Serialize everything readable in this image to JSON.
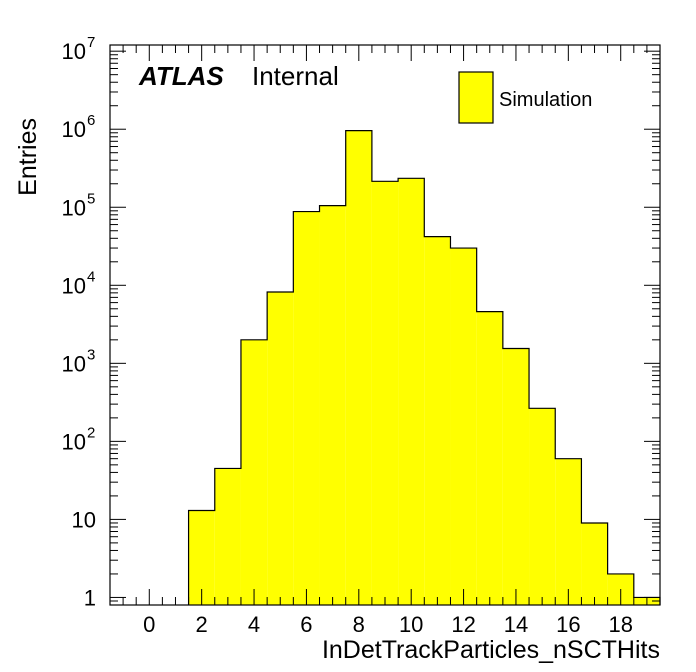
{
  "chart_data": {
    "type": "bar",
    "subtype": "histogram",
    "xlabel": "InDetTrackParticles_nSCTHits",
    "ylabel": "Entries",
    "xlim": [
      -1.5,
      19.5
    ],
    "ylim": [
      0.8,
      12000000
    ],
    "yscale": "log",
    "x_ticks": [
      0,
      2,
      4,
      6,
      8,
      10,
      12,
      14,
      16,
      18
    ],
    "y_ticks": [
      {
        "value": 1,
        "base": "1",
        "exp": ""
      },
      {
        "value": 10,
        "base": "10",
        "exp": ""
      },
      {
        "value": 100,
        "base": "10",
        "exp": "2"
      },
      {
        "value": 1000,
        "base": "10",
        "exp": "3"
      },
      {
        "value": 10000,
        "base": "10",
        "exp": "4"
      },
      {
        "value": 100000,
        "base": "10",
        "exp": "5"
      },
      {
        "value": 1000000,
        "base": "10",
        "exp": "6"
      },
      {
        "value": 10000000,
        "base": "10",
        "exp": "7"
      }
    ],
    "bin_edges": [
      1.5,
      2.5,
      3.5,
      4.5,
      5.5,
      6.5,
      7.5,
      8.5,
      9.5,
      10.5,
      11.5,
      12.5,
      13.5,
      14.5,
      15.5,
      16.5,
      17.5,
      18.5,
      19.5
    ],
    "values": [
      13,
      45,
      2000,
      8200,
      88000,
      105000,
      960000,
      215000,
      235000,
      42000,
      30000,
      4600,
      1550,
      265,
      60,
      9,
      2,
      1
    ],
    "fill_color": "#ffff00",
    "line_color": "#000000",
    "legend": {
      "position": "top-right",
      "entries": [
        "Simulation"
      ]
    },
    "annotation": {
      "bold_italic": "ATLAS",
      "normal": "Internal"
    },
    "grid": false
  }
}
